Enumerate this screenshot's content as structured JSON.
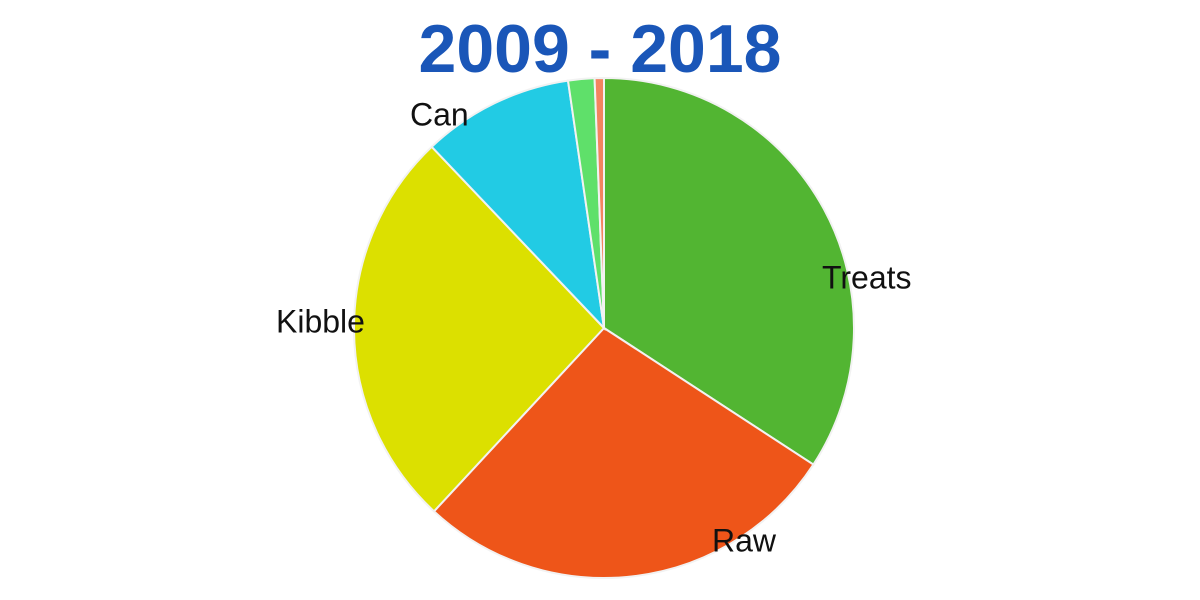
{
  "chart_data": {
    "type": "pie",
    "title": "2009 - 2018",
    "categories": [
      "Treats",
      "Raw",
      "Kibble",
      "Can",
      null,
      null
    ],
    "values": [
      34.2,
      27.7,
      26.0,
      9.8,
      1.7,
      0.6
    ],
    "colors": [
      "#52b532",
      "#ee5519",
      "#dce000",
      "#22cbe4",
      "#5fe06a",
      "#f4845f"
    ]
  }
}
